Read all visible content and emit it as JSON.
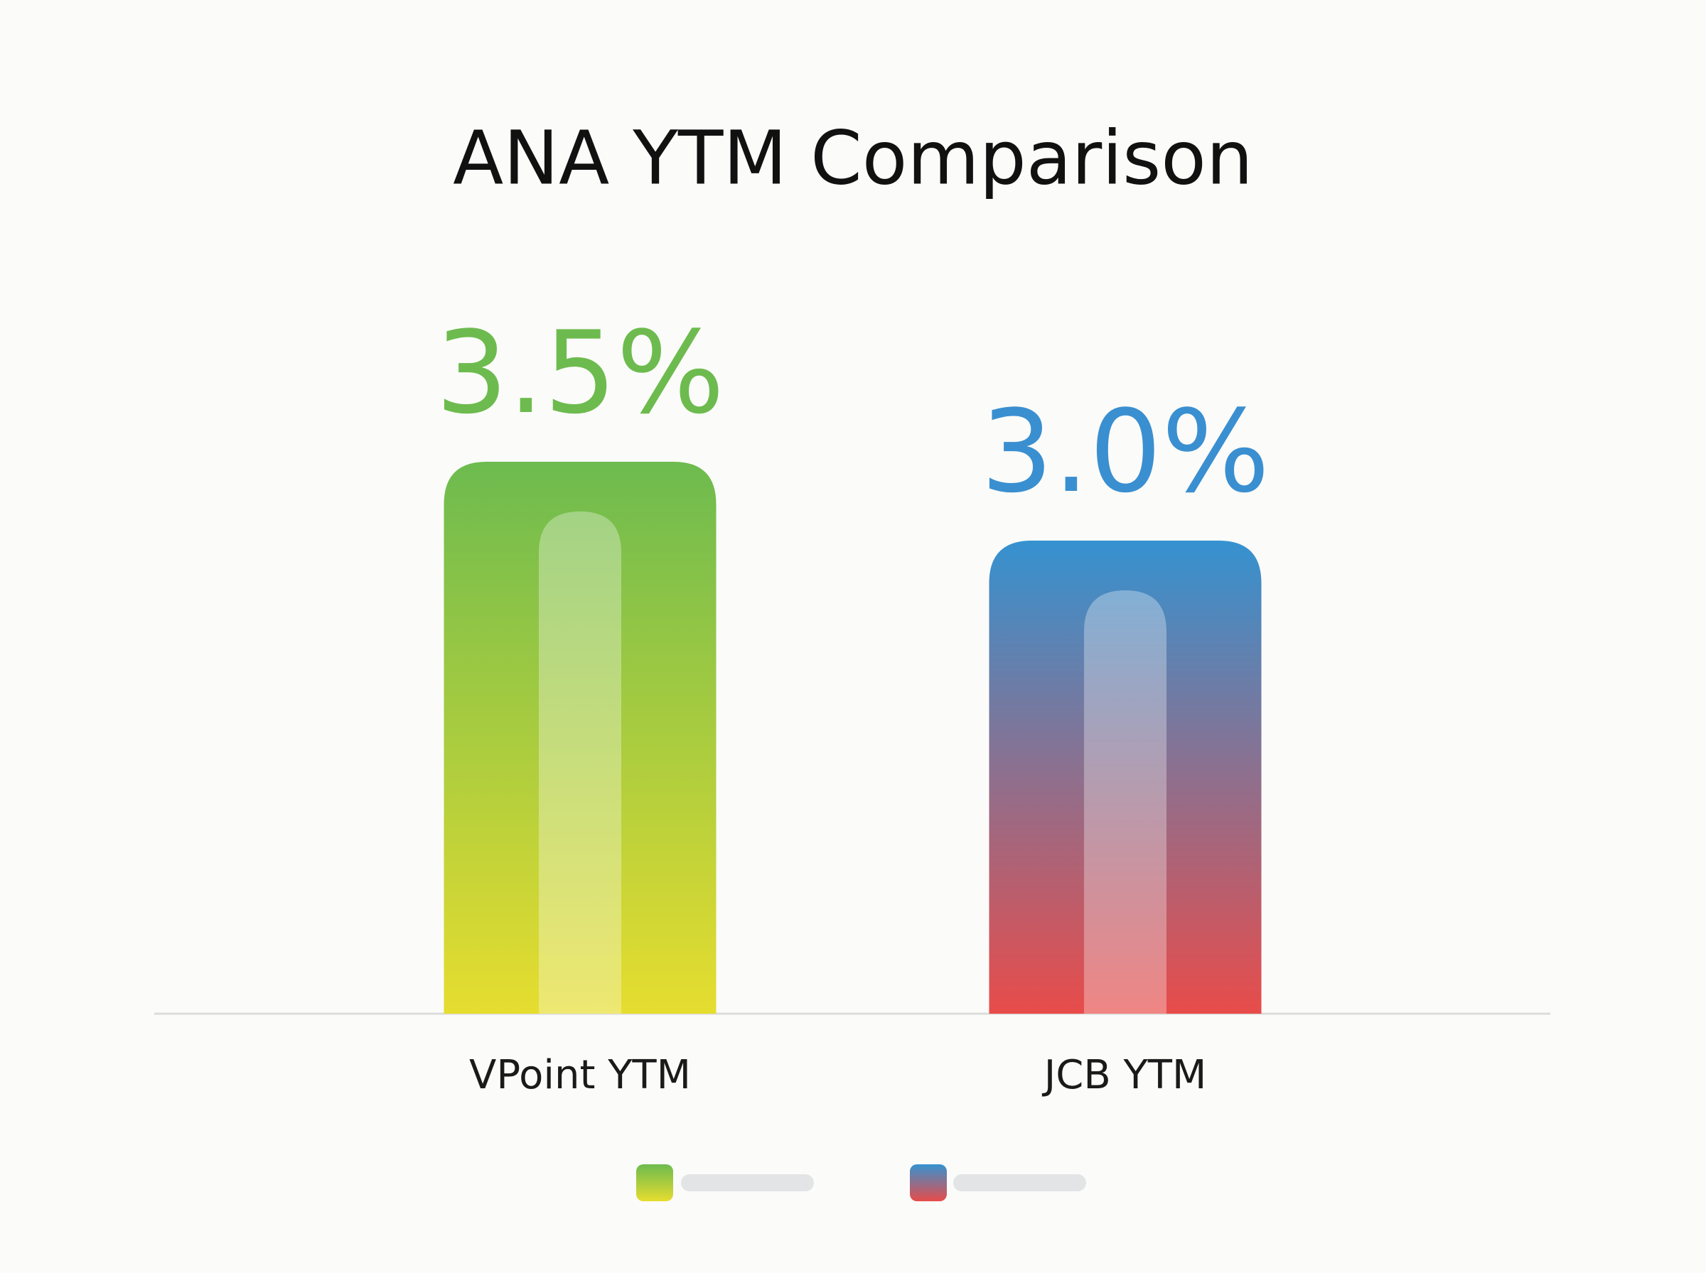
{
  "chart_data": {
    "type": "bar",
    "title": "ANA YTM Comparison",
    "categories": [
      "VPoint YTM",
      "JCB YTM"
    ],
    "values": [
      3.5,
      3.0
    ],
    "value_labels": [
      "3.5%",
      "3.0%"
    ],
    "colors": [
      [
        "#6dbb4f",
        "#e6dd2f"
      ],
      [
        "#3592d0",
        "#e84c4a"
      ]
    ],
    "label_colors": [
      "#6dbb4f",
      "#3a8fd0"
    ]
  }
}
